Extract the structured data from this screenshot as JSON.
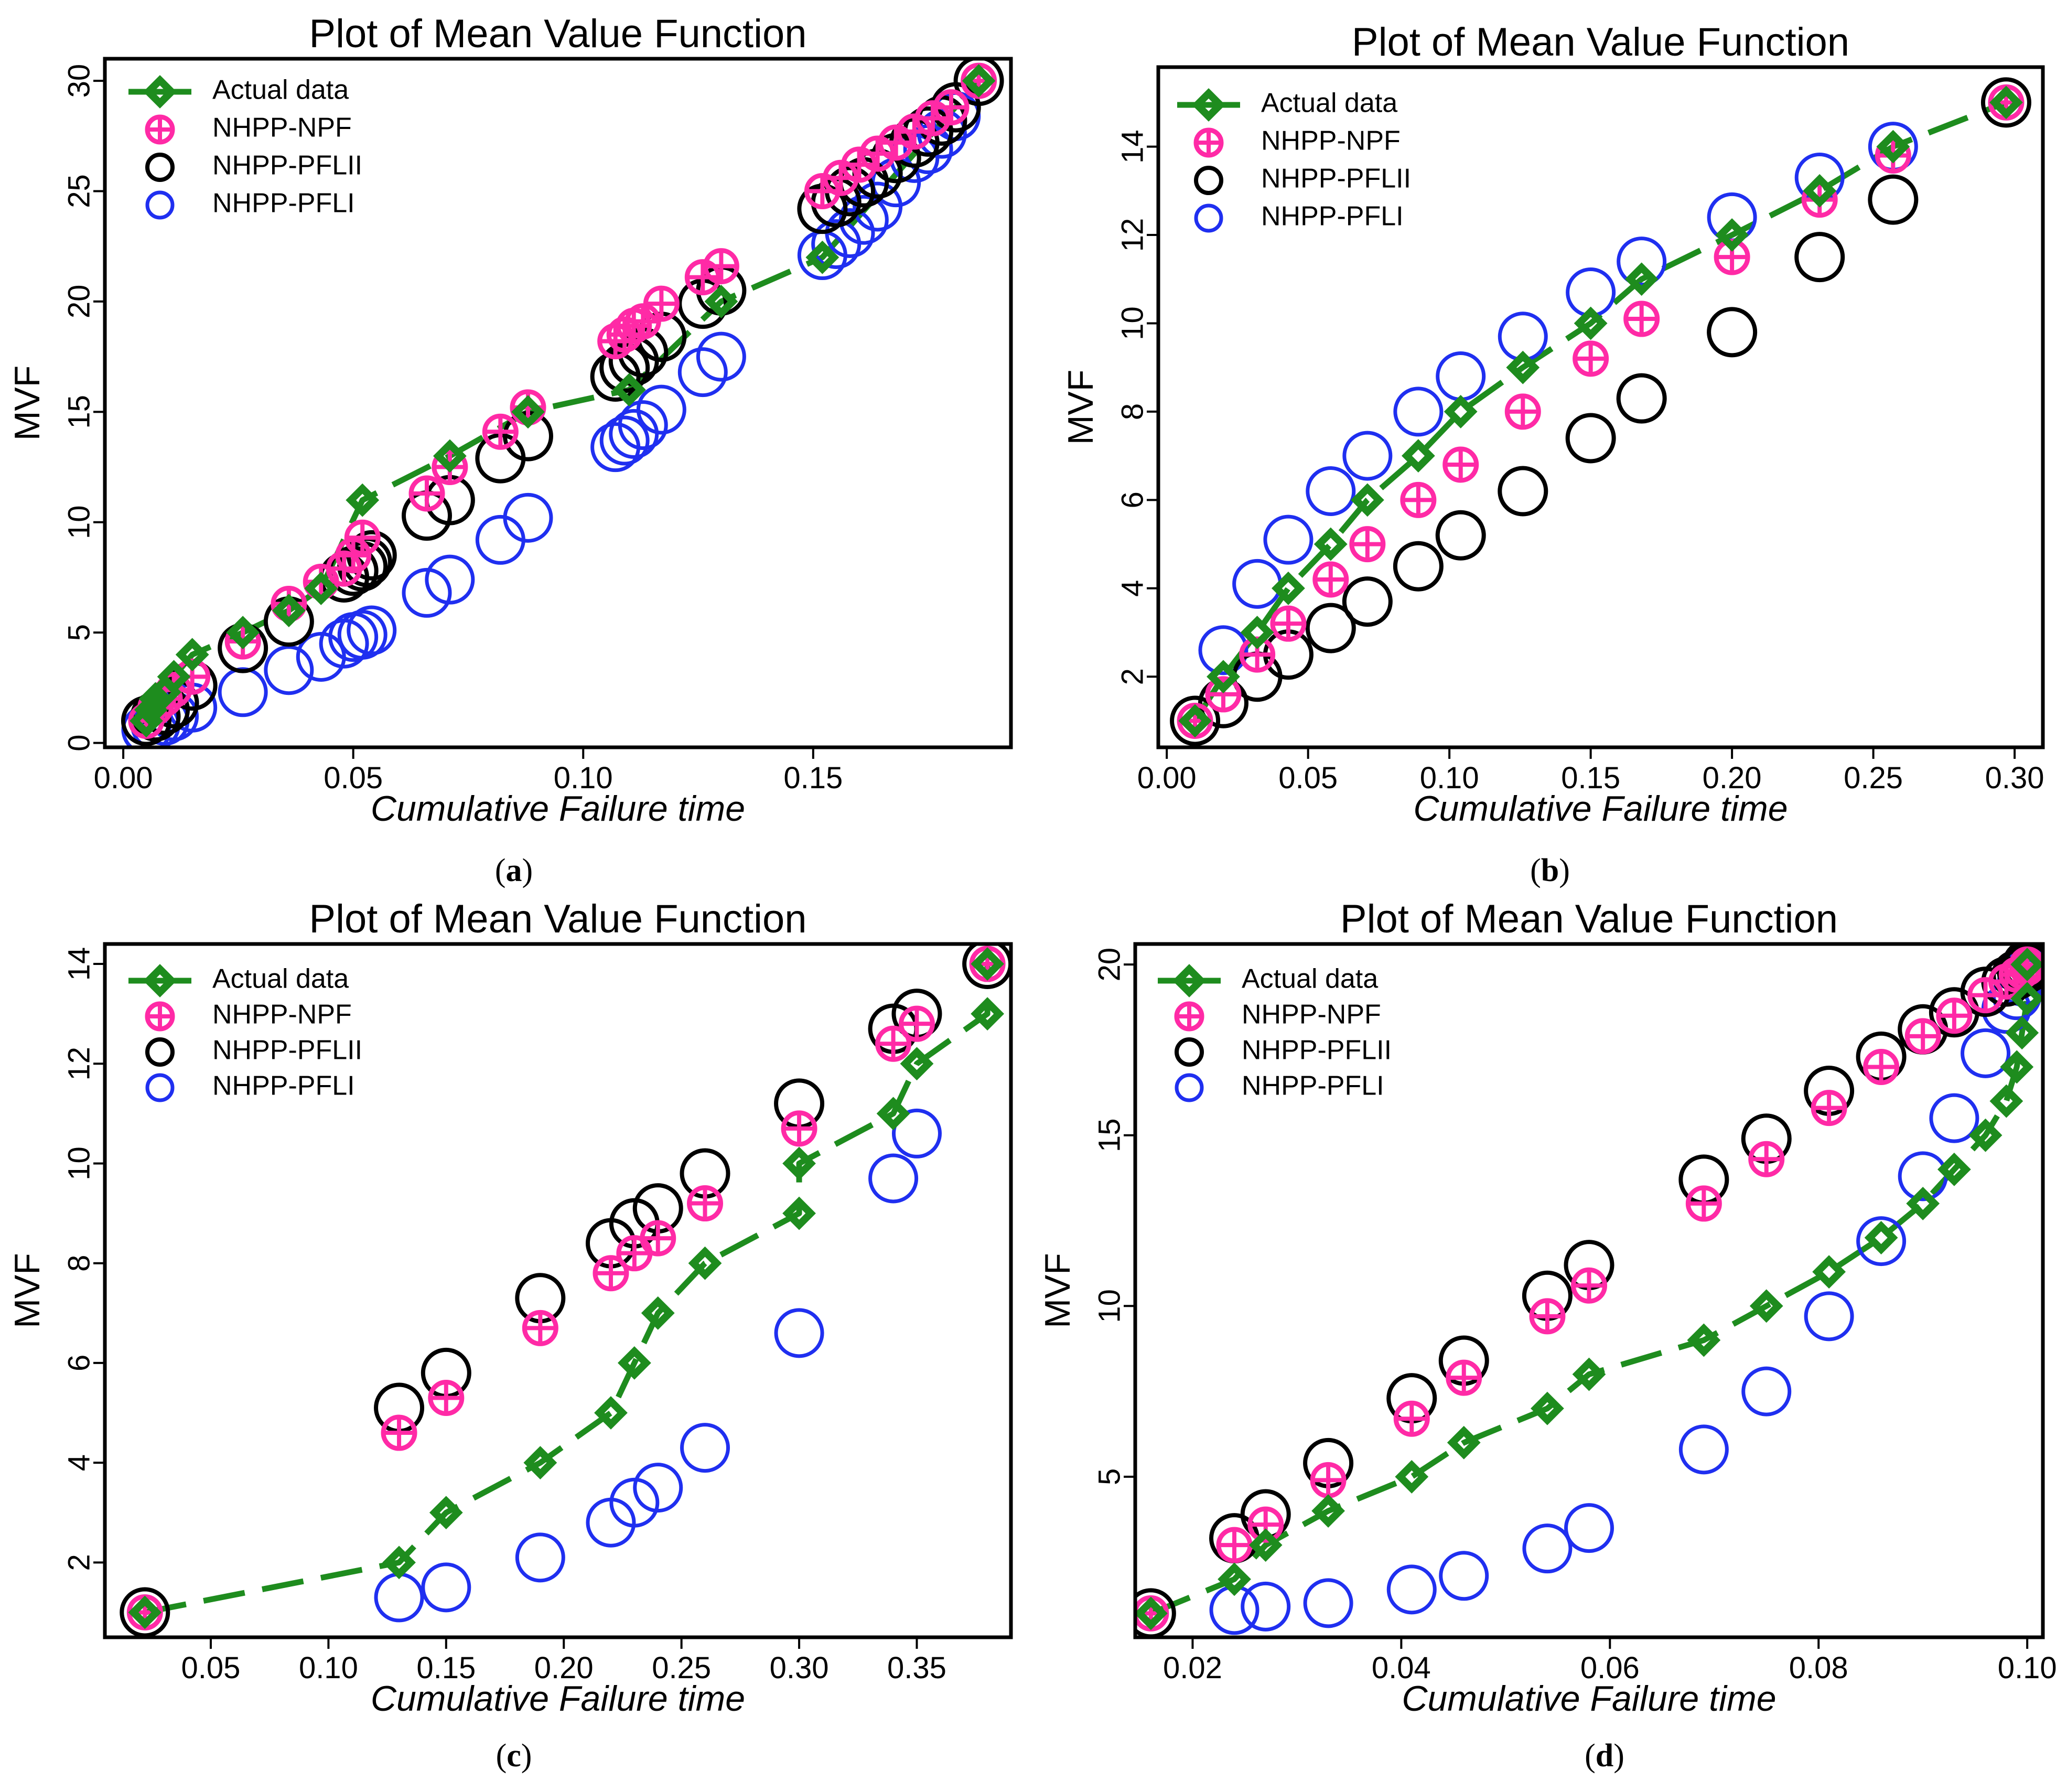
{
  "legend_labels": [
    "Actual data",
    "NHPP-NPF",
    "NHPP-PFLII",
    "NHPP-PFLI"
  ],
  "colors": {
    "actual": "#1e8c1e",
    "npf": "#ff2aa6",
    "pflii": "#000000",
    "pfli": "#1f2ff0"
  },
  "chart_data": [
    {
      "id": "a",
      "caption": "a",
      "type": "scatter",
      "title": "Plot of Mean Value Function",
      "xlabel": "Cumulative Failure time",
      "ylabel": "MVF",
      "xlim": [
        -0.004,
        0.193
      ],
      "ylim": [
        -0.2,
        31
      ],
      "xticks": [
        0.0,
        0.05,
        0.1,
        0.15
      ],
      "xtick_labels": [
        "0.00",
        "0.05",
        "0.10",
        "0.15"
      ],
      "yticks": [
        0,
        5,
        10,
        15,
        20,
        25,
        30
      ],
      "ytick_labels": [
        "0",
        "5",
        "10",
        "15",
        "20",
        "25",
        "30"
      ],
      "legend_position": "top-left",
      "series": [
        {
          "name": "Actual data",
          "x": [
            0.005,
            0.006,
            0.007,
            0.009,
            0.011,
            0.015,
            0.026,
            0.036,
            0.043,
            0.052,
            0.071,
            0.088,
            0.11,
            0.13,
            0.152,
            0.186
          ],
          "values": [
            1,
            1.5,
            2,
            2.3,
            3,
            4,
            5,
            6,
            7,
            11,
            13,
            15,
            16,
            20,
            22,
            30
          ]
        },
        {
          "name": "NHPP-NPF",
          "x": [
            0.005,
            0.007,
            0.009,
            0.011,
            0.015,
            0.026,
            0.036,
            0.043,
            0.048,
            0.05,
            0.052,
            0.066,
            0.071,
            0.082,
            0.088,
            0.107,
            0.109,
            0.111,
            0.113,
            0.117,
            0.126,
            0.13,
            0.152,
            0.156,
            0.16,
            0.164,
            0.168,
            0.172,
            0.176,
            0.18,
            0.186
          ],
          "values": [
            1,
            1.6,
            2,
            2.4,
            3,
            4.6,
            6.3,
            7.3,
            7.9,
            8.5,
            9.3,
            11.3,
            12.5,
            14.1,
            15.2,
            18.2,
            18.5,
            18.9,
            19.1,
            19.9,
            21.1,
            21.6,
            25,
            25.6,
            26.2,
            26.7,
            27.2,
            27.7,
            28.3,
            28.8,
            30
          ]
        },
        {
          "name": "NHPP-PFLII",
          "x": [
            0.005,
            0.007,
            0.009,
            0.011,
            0.015,
            0.026,
            0.036,
            0.048,
            0.05,
            0.052,
            0.053,
            0.054,
            0.066,
            0.071,
            0.082,
            0.088,
            0.107,
            0.109,
            0.111,
            0.113,
            0.117,
            0.126,
            0.13,
            0.152,
            0.155,
            0.158,
            0.161,
            0.164,
            0.168,
            0.172,
            0.175,
            0.178,
            0.181,
            0.186
          ],
          "values": [
            1,
            1.2,
            1.5,
            1.8,
            2.6,
            4.3,
            5.5,
            7.5,
            7.8,
            8,
            8.2,
            8.5,
            10.3,
            11,
            12.9,
            13.9,
            16.6,
            17,
            17.3,
            17.7,
            18.4,
            19.9,
            20.5,
            24.2,
            24.5,
            25,
            25.4,
            25.8,
            26.5,
            27.2,
            27.7,
            28.2,
            28.8,
            30
          ]
        },
        {
          "name": "NHPP-PFLI",
          "x": [
            0.005,
            0.007,
            0.009,
            0.011,
            0.015,
            0.026,
            0.036,
            0.043,
            0.048,
            0.05,
            0.052,
            0.054,
            0.066,
            0.071,
            0.082,
            0.088,
            0.107,
            0.109,
            0.111,
            0.113,
            0.117,
            0.126,
            0.13,
            0.152,
            0.155,
            0.158,
            0.161,
            0.164,
            0.168,
            0.172,
            0.175,
            0.178,
            0.181,
            0.186
          ],
          "values": [
            0.6,
            0.8,
            1,
            1.2,
            1.6,
            2.3,
            3.3,
            3.9,
            4.5,
            4.8,
            4.9,
            5.1,
            6.8,
            7.4,
            9.2,
            10.2,
            13.4,
            13.7,
            14,
            14.4,
            15.1,
            16.8,
            17.5,
            22.1,
            22.6,
            23.1,
            23.7,
            24.3,
            25.4,
            26.5,
            26.9,
            27.6,
            28.4,
            30
          ]
        }
      ]
    },
    {
      "id": "b",
      "caption": "b",
      "type": "scatter",
      "title": "Plot of Mean Value Function",
      "xlabel": "Cumulative Failure time",
      "ylabel": "MVF",
      "xlim": [
        -0.003,
        0.31
      ],
      "ylim": [
        0.4,
        15.8
      ],
      "xticks": [
        0.0,
        0.05,
        0.1,
        0.15,
        0.2,
        0.25,
        0.3
      ],
      "xtick_labels": [
        "0.00",
        "0.05",
        "0.10",
        "0.15",
        "0.20",
        "0.25",
        "0.30"
      ],
      "yticks": [
        2,
        4,
        6,
        8,
        10,
        12,
        14
      ],
      "ytick_labels": [
        "2",
        "4",
        "6",
        "8",
        "10",
        "12",
        "14"
      ],
      "legend_position": "top-left",
      "series": [
        {
          "name": "Actual data",
          "x": [
            0.01,
            0.02,
            0.032,
            0.043,
            0.058,
            0.071,
            0.089,
            0.104,
            0.126,
            0.15,
            0.168,
            0.2,
            0.231,
            0.257,
            0.297
          ],
          "values": [
            1,
            2,
            3,
            4,
            5,
            6,
            7,
            8,
            9,
            10,
            11,
            12,
            13,
            14,
            15
          ]
        },
        {
          "name": "NHPP-NPF",
          "x": [
            0.01,
            0.02,
            0.032,
            0.043,
            0.058,
            0.071,
            0.089,
            0.104,
            0.126,
            0.15,
            0.168,
            0.2,
            0.231,
            0.257,
            0.297
          ],
          "values": [
            1,
            1.6,
            2.5,
            3.2,
            4.2,
            5,
            6,
            6.8,
            8,
            9.2,
            10.1,
            11.5,
            12.8,
            13.8,
            15
          ]
        },
        {
          "name": "NHPP-PFLII",
          "x": [
            0.01,
            0.02,
            0.032,
            0.043,
            0.058,
            0.071,
            0.089,
            0.104,
            0.126,
            0.15,
            0.168,
            0.2,
            0.231,
            0.257,
            0.297
          ],
          "values": [
            1,
            1.4,
            2,
            2.5,
            3.1,
            3.7,
            4.5,
            5.2,
            6.2,
            7.4,
            8.3,
            9.8,
            11.5,
            12.8,
            15
          ]
        },
        {
          "name": "NHPP-PFLI",
          "x": [
            0.01,
            0.02,
            0.032,
            0.043,
            0.058,
            0.071,
            0.089,
            0.104,
            0.126,
            0.15,
            0.168,
            0.2,
            0.231,
            0.257,
            0.297
          ],
          "values": [
            1,
            2.6,
            4.1,
            5.1,
            6.2,
            7,
            8,
            8.8,
            9.7,
            10.7,
            11.4,
            12.4,
            13.3,
            14,
            15
          ]
        }
      ]
    },
    {
      "id": "c",
      "caption": "c",
      "type": "scatter",
      "title": "Plot of Mean Value Function",
      "xlabel": "Cumulative Failure time",
      "ylabel": "MVF",
      "xlim": [
        0.005,
        0.39
      ],
      "ylim": [
        0.5,
        14.4
      ],
      "xticks": [
        0.05,
        0.1,
        0.15,
        0.2,
        0.25,
        0.3,
        0.35
      ],
      "xtick_labels": [
        "0.05",
        "0.10",
        "0.15",
        "0.20",
        "0.25",
        "0.30",
        "0.35"
      ],
      "yticks": [
        2,
        4,
        6,
        8,
        10,
        12,
        14
      ],
      "ytick_labels": [
        "2",
        "4",
        "6",
        "8",
        "10",
        "12",
        "14"
      ],
      "legend_position": "top-left",
      "series": [
        {
          "name": "Actual data",
          "x": [
            0.022,
            0.13,
            0.15,
            0.19,
            0.22,
            0.23,
            0.24,
            0.26,
            0.3,
            0.3,
            0.34,
            0.35,
            0.38,
            0.38
          ],
          "values": [
            1,
            2,
            3,
            4,
            5,
            6,
            7,
            8,
            9,
            10,
            11,
            12,
            13,
            14
          ]
        },
        {
          "name": "NHPP-NPF",
          "x": [
            0.022,
            0.13,
            0.15,
            0.19,
            0.22,
            0.23,
            0.24,
            0.26,
            0.3,
            0.34,
            0.35,
            0.38
          ],
          "values": [
            1,
            4.6,
            5.3,
            6.7,
            7.8,
            8.2,
            8.5,
            9.2,
            10.7,
            12.4,
            12.8,
            14
          ]
        },
        {
          "name": "NHPP-PFLII",
          "x": [
            0.022,
            0.13,
            0.15,
            0.19,
            0.22,
            0.23,
            0.24,
            0.26,
            0.3,
            0.34,
            0.35,
            0.38
          ],
          "values": [
            1,
            5.1,
            5.8,
            7.3,
            8.4,
            8.8,
            9.1,
            9.8,
            11.2,
            12.7,
            13,
            14
          ]
        },
        {
          "name": "NHPP-PFLI",
          "x": [
            0.022,
            0.13,
            0.15,
            0.19,
            0.22,
            0.23,
            0.24,
            0.26,
            0.3,
            0.34,
            0.35,
            0.38
          ],
          "values": [
            1,
            1.3,
            1.5,
            2.1,
            2.8,
            3.2,
            3.5,
            4.3,
            6.6,
            9.7,
            10.6,
            14
          ]
        }
      ]
    },
    {
      "id": "d",
      "caption": "d",
      "type": "scatter",
      "title": "Plot of Mean Value Function",
      "xlabel": "Cumulative Failure time",
      "ylabel": "MVF",
      "xlim": [
        0.0145,
        0.1015
      ],
      "ylim": [
        0.3,
        20.6
      ],
      "xticks": [
        0.02,
        0.04,
        0.06,
        0.08,
        0.1
      ],
      "xtick_labels": [
        "0.02",
        "0.04",
        "0.06",
        "0.08",
        "0.10"
      ],
      "yticks": [
        5,
        10,
        15,
        20
      ],
      "ytick_labels": [
        "5",
        "10",
        "15",
        "20"
      ],
      "legend_position": "top-left",
      "series": [
        {
          "name": "Actual data",
          "x": [
            0.016,
            0.024,
            0.027,
            0.033,
            0.041,
            0.046,
            0.054,
            0.058,
            0.069,
            0.075,
            0.081,
            0.086,
            0.09,
            0.093,
            0.096,
            0.098,
            0.099,
            0.0995,
            0.1,
            0.1
          ],
          "values": [
            1,
            2,
            3,
            4,
            5,
            6,
            7,
            8,
            9,
            10,
            11,
            12,
            13,
            14,
            15,
            16,
            17,
            18,
            19,
            20
          ]
        },
        {
          "name": "NHPP-NPF",
          "x": [
            0.016,
            0.024,
            0.027,
            0.033,
            0.041,
            0.046,
            0.054,
            0.058,
            0.069,
            0.075,
            0.081,
            0.086,
            0.09,
            0.093,
            0.096,
            0.098,
            0.099,
            0.0995,
            0.1,
            0.1
          ],
          "values": [
            1,
            3,
            3.6,
            4.9,
            6.7,
            7.9,
            9.7,
            10.6,
            13,
            14.3,
            15.8,
            17,
            17.9,
            18.5,
            19.1,
            19.5,
            19.7,
            19.8,
            19.9,
            20
          ]
        },
        {
          "name": "NHPP-PFLII",
          "x": [
            0.016,
            0.024,
            0.027,
            0.033,
            0.041,
            0.046,
            0.054,
            0.058,
            0.069,
            0.075,
            0.081,
            0.086,
            0.09,
            0.093,
            0.096,
            0.098,
            0.099,
            0.0995,
            0.1,
            0.1
          ],
          "values": [
            1,
            3.2,
            3.9,
            5.4,
            7.3,
            8.4,
            10.3,
            11.2,
            13.7,
            14.9,
            16.3,
            17.3,
            18.1,
            18.6,
            19.2,
            19.5,
            19.7,
            19.8,
            19.9,
            20
          ]
        },
        {
          "name": "NHPP-PFLI",
          "x": [
            0.016,
            0.024,
            0.027,
            0.033,
            0.041,
            0.046,
            0.054,
            0.058,
            0.069,
            0.075,
            0.081,
            0.086,
            0.09,
            0.093,
            0.096,
            0.098,
            0.099,
            0.0995,
            0.1,
            0.1
          ],
          "values": [
            1,
            1.1,
            1.2,
            1.3,
            1.7,
            2.1,
            2.9,
            3.5,
            5.8,
            7.5,
            9.7,
            11.9,
            13.8,
            15.5,
            17.4,
            18.7,
            19.1,
            19.5,
            19.8,
            20
          ]
        }
      ]
    }
  ]
}
